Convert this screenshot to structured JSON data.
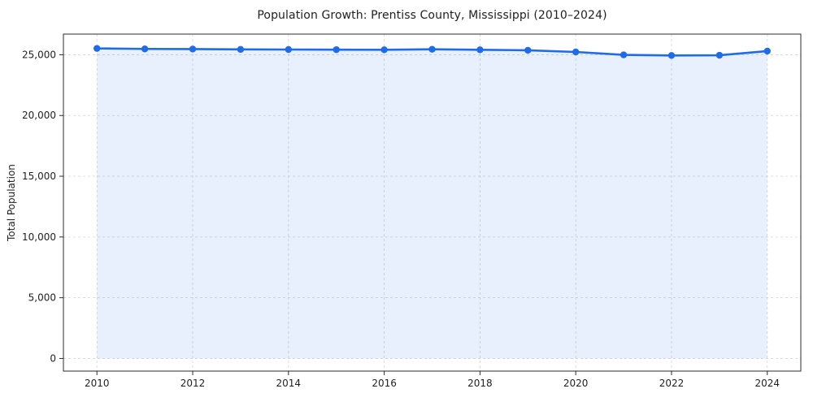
{
  "page": {
    "background": "#ffffff"
  },
  "chart_data": {
    "type": "line",
    "title": "Population Growth: Prentiss County, Mississippi (2010–2024)",
    "xlabel": "",
    "ylabel": "Total Population",
    "legend": "none",
    "grid": true,
    "series": [
      {
        "name": "Total Population",
        "x": [
          2010,
          2011,
          2012,
          2013,
          2014,
          2015,
          2016,
          2017,
          2018,
          2019,
          2020,
          2021,
          2022,
          2023,
          2024
        ],
        "values": [
          25520,
          25480,
          25470,
          25440,
          25430,
          25420,
          25410,
          25450,
          25410,
          25370,
          25230,
          24990,
          24940,
          24960,
          25300
        ]
      }
    ],
    "x_ticks": [
      2010,
      2012,
      2014,
      2016,
      2018,
      2020,
      2022,
      2024
    ],
    "x_tick_labels": [
      "2010",
      "2012",
      "2014",
      "2016",
      "2018",
      "2020",
      "2022",
      "2024"
    ],
    "y_ticks": [
      0,
      5000,
      10000,
      15000,
      20000,
      25000
    ],
    "y_tick_labels": [
      "0",
      "5,000",
      "10,000",
      "15,000",
      "20,000",
      "25,000"
    ],
    "xlim": [
      2009.3,
      2024.7
    ],
    "ylim": [
      -1040,
      26700
    ],
    "baseline_value": 0,
    "style": {
      "line_color": "#1f6be8",
      "marker_color": "#1f6be8",
      "fill_color": "#1f6be8",
      "fill_opacity": 0.1,
      "grid_color": "#d4d4d4",
      "spine_color": "#2b2b2b",
      "text_color": "#1f1f1f",
      "line_width": 2.6,
      "marker_radius": 4.2
    }
  }
}
